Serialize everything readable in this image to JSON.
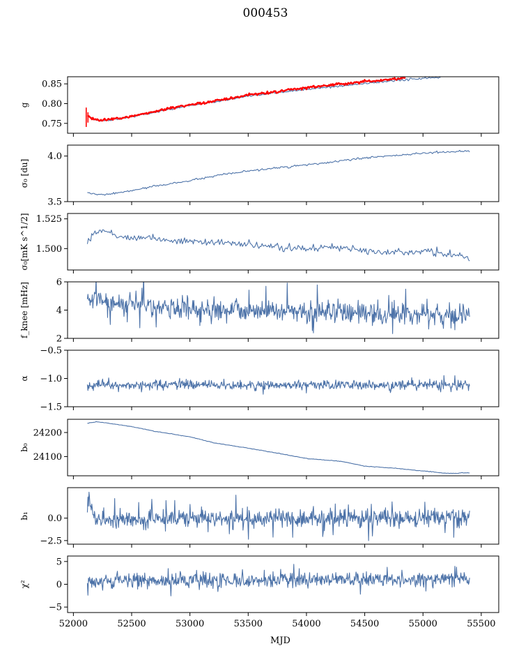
{
  "figure_title": "000453",
  "chart_data": [
    {
      "type": "line",
      "ylabel": "g",
      "xlim": [
        51950,
        55650
      ],
      "ylim": [
        0.725,
        0.868
      ],
      "yticks": [
        0.75,
        0.8,
        0.85
      ],
      "ytick_labels": [
        "0.75",
        "0.80",
        "0.85"
      ],
      "series": [
        {
          "name": "g",
          "color": "#4c72a8",
          "kind": "smooth",
          "points": [
            [
              52120,
              0.769
            ],
            [
              52160,
              0.762
            ],
            [
              52220,
              0.757
            ],
            [
              52300,
              0.758
            ],
            [
              52500,
              0.767
            ],
            [
              52750,
              0.781
            ],
            [
              53000,
              0.795
            ],
            [
              53250,
              0.806
            ],
            [
              53500,
              0.818
            ],
            [
              53750,
              0.828
            ],
            [
              54000,
              0.836
            ],
            [
              54250,
              0.843
            ],
            [
              54500,
              0.851
            ],
            [
              54750,
              0.858
            ],
            [
              55000,
              0.864
            ],
            [
              55150,
              0.866
            ]
          ],
          "noise": 0.0012
        },
        {
          "name": "g-fit",
          "color": "#ff0000",
          "kind": "smooth",
          "points": [
            [
              52120,
              0.769
            ],
            [
              52160,
              0.762
            ],
            [
              52220,
              0.758
            ],
            [
              52300,
              0.759
            ],
            [
              52500,
              0.768
            ],
            [
              52750,
              0.783
            ],
            [
              53000,
              0.797
            ],
            [
              53250,
              0.809
            ],
            [
              53500,
              0.821
            ],
            [
              53750,
              0.831
            ],
            [
              54000,
              0.84
            ],
            [
              54250,
              0.848
            ],
            [
              54500,
              0.856
            ],
            [
              54750,
              0.862
            ],
            [
              54850,
              0.866
            ]
          ],
          "noise": 0.0016,
          "error_bars": [
            {
              "x": 52110,
              "low": 0.741,
              "high": 0.79
            },
            {
              "x": 52125,
              "low": 0.752,
              "high": 0.778
            }
          ]
        }
      ]
    },
    {
      "type": "line",
      "ylabel": "σ₀ [du]",
      "xlim": [
        51950,
        55650
      ],
      "ylim": [
        3.5,
        4.12
      ],
      "yticks": [
        3.5,
        4.0
      ],
      "ytick_labels": [
        "3.5",
        "4.0"
      ],
      "series": [
        {
          "name": "sigma0-du",
          "color": "#4c72a8",
          "kind": "smooth",
          "points": [
            [
              52120,
              3.6
            ],
            [
              52200,
              3.575
            ],
            [
              52300,
              3.58
            ],
            [
              52500,
              3.62
            ],
            [
              52700,
              3.67
            ],
            [
              53000,
              3.73
            ],
            [
              53300,
              3.8
            ],
            [
              53600,
              3.85
            ],
            [
              53900,
              3.89
            ],
            [
              54200,
              3.93
            ],
            [
              54500,
              3.98
            ],
            [
              54800,
              4.01
            ],
            [
              55100,
              4.04
            ],
            [
              55400,
              4.055
            ]
          ],
          "noise": 0.005
        }
      ]
    },
    {
      "type": "line",
      "ylabel": "σ₀[mK s^1/2]",
      "xlim": [
        51950,
        55650
      ],
      "ylim": [
        1.482,
        1.5295
      ],
      "yticks": [
        1.5,
        1.525
      ],
      "ytick_labels": [
        "1.500",
        "1.525"
      ],
      "series": [
        {
          "name": "sigma0-mks",
          "color": "#4c72a8",
          "kind": "smooth",
          "points": [
            [
              52120,
              1.505
            ],
            [
              52150,
              1.512
            ],
            [
              52200,
              1.514
            ],
            [
              52280,
              1.516
            ],
            [
              52400,
              1.509
            ],
            [
              52600,
              1.51
            ],
            [
              52800,
              1.507
            ],
            [
              53000,
              1.506
            ],
            [
              53300,
              1.505
            ],
            [
              53600,
              1.502
            ],
            [
              54000,
              1.5
            ],
            [
              54300,
              1.501
            ],
            [
              54500,
              1.499
            ],
            [
              54800,
              1.497
            ],
            [
              55100,
              1.497
            ],
            [
              55300,
              1.494
            ],
            [
              55400,
              1.492
            ]
          ],
          "noise": 0.0015
        }
      ]
    },
    {
      "type": "line",
      "ylabel": "f_knee [mHz]",
      "xlim": [
        51950,
        55650
      ],
      "ylim": [
        2,
        6
      ],
      "yticks": [
        2,
        4,
        6
      ],
      "ytick_labels": [
        "2",
        "4",
        "6"
      ],
      "series": [
        {
          "name": "fknee",
          "color": "#4c72a8",
          "kind": "noisy",
          "points": [
            [
              52120,
              5.0
            ],
            [
              52300,
              4.6
            ],
            [
              52700,
              4.3
            ],
            [
              53000,
              4.1
            ],
            [
              53500,
              4.0
            ],
            [
              54000,
              3.9
            ],
            [
              54500,
              3.8
            ],
            [
              55000,
              3.7
            ],
            [
              55400,
              3.5
            ]
          ],
          "noise": 0.4,
          "spikes": 0.04,
          "spike_size": 1.2
        }
      ]
    },
    {
      "type": "line",
      "ylabel": "α",
      "xlim": [
        51950,
        55650
      ],
      "ylim": [
        -1.5,
        -0.5
      ],
      "yticks": [
        -1.5,
        -1.0,
        -0.5
      ],
      "ytick_labels": [
        "−1.5",
        "−1.0",
        "−0.5"
      ],
      "series": [
        {
          "name": "alpha",
          "color": "#4c72a8",
          "kind": "noisy",
          "points": [
            [
              52120,
              -1.12
            ],
            [
              52500,
              -1.12
            ],
            [
              53000,
              -1.11
            ],
            [
              53500,
              -1.12
            ],
            [
              54000,
              -1.11
            ],
            [
              54500,
              -1.12
            ],
            [
              55000,
              -1.11
            ],
            [
              55400,
              -1.12
            ]
          ],
          "noise": 0.04,
          "spikes": 0.02,
          "spike_size": 0.12
        }
      ]
    },
    {
      "type": "line",
      "ylabel": "b₀",
      "xlim": [
        51950,
        55650
      ],
      "ylim": [
        24020,
        24255
      ],
      "yticks": [
        24100,
        24200
      ],
      "ytick_labels": [
        "24100",
        "24200"
      ],
      "series": [
        {
          "name": "b0",
          "color": "#4c72a8",
          "kind": "smooth",
          "points": [
            [
              52120,
              24238
            ],
            [
              52200,
              24245
            ],
            [
              52350,
              24235
            ],
            [
              52500,
              24225
            ],
            [
              52700,
              24205
            ],
            [
              53000,
              24182
            ],
            [
              53200,
              24158
            ],
            [
              53500,
              24135
            ],
            [
              53800,
              24110
            ],
            [
              54000,
              24092
            ],
            [
              54300,
              24080
            ],
            [
              54500,
              24060
            ],
            [
              54800,
              24050
            ],
            [
              55000,
              24040
            ],
            [
              55200,
              24030
            ],
            [
              55400,
              24032
            ]
          ],
          "noise": 0.6
        }
      ]
    },
    {
      "type": "line",
      "ylabel": "b₁",
      "xlim": [
        51950,
        55650
      ],
      "ylim": [
        -2.9,
        3.4
      ],
      "yticks": [
        -2.5,
        0.0
      ],
      "ytick_labels": [
        "−2.5",
        "0.0"
      ],
      "series": [
        {
          "name": "b1",
          "color": "#4c72a8",
          "kind": "noisy",
          "points": [
            [
              52120,
              2.6
            ],
            [
              52150,
              1.0
            ],
            [
              52200,
              0.0
            ],
            [
              52600,
              -0.1
            ],
            [
              53000,
              0.0
            ],
            [
              53500,
              -0.1
            ],
            [
              54000,
              0.0
            ],
            [
              54500,
              -0.1
            ],
            [
              55000,
              0.0
            ],
            [
              55400,
              0.2
            ]
          ],
          "noise": 0.5,
          "spikes": 0.04,
          "spike_size": 1.5
        }
      ]
    },
    {
      "type": "line",
      "ylabel": "χ²",
      "xlim": [
        51950,
        55650
      ],
      "ylim": [
        -6.2,
        6.2
      ],
      "yticks": [
        -5,
        0,
        5
      ],
      "ytick_labels": [
        "−5",
        "0",
        "5"
      ],
      "xticks": [
        52000,
        52500,
        53000,
        53500,
        54000,
        54500,
        55000,
        55500
      ],
      "xtick_labels": [
        "52000",
        "52500",
        "53000",
        "53500",
        "54000",
        "54500",
        "55000",
        "55500"
      ],
      "xlabel": "MJD",
      "series": [
        {
          "name": "chi2",
          "color": "#4c72a8",
          "kind": "noisy",
          "points": [
            [
              52120,
              0.6
            ],
            [
              52500,
              0.8
            ],
            [
              53000,
              0.9
            ],
            [
              53500,
              0.8
            ],
            [
              54000,
              1.0
            ],
            [
              54500,
              1.1
            ],
            [
              55000,
              1.3
            ],
            [
              55400,
              1.4
            ]
          ],
          "noise": 0.8,
          "spikes": 0.03,
          "spike_size": 1.8
        }
      ]
    }
  ]
}
